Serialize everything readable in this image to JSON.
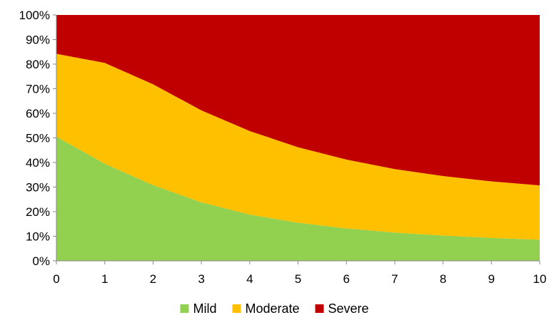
{
  "chart_data": {
    "type": "area",
    "stacked": "percent",
    "x": [
      0,
      1,
      2,
      3,
      4,
      5,
      6,
      7,
      8,
      9,
      10
    ],
    "xlim": [
      0,
      10
    ],
    "ylim": [
      0,
      100
    ],
    "y_ticks": [
      "0%",
      "10%",
      "20%",
      "30%",
      "40%",
      "50%",
      "60%",
      "70%",
      "80%",
      "90%",
      "100%"
    ],
    "x_ticks": [
      "0",
      "1",
      "2",
      "3",
      "4",
      "5",
      "6",
      "7",
      "8",
      "9",
      "10"
    ],
    "series": [
      {
        "name": "Mild",
        "color": "#92d050",
        "values": [
          50.5,
          39.5,
          30.8,
          23.8,
          18.8,
          15.5,
          13.2,
          11.5,
          10.3,
          9.3,
          8.6
        ]
      },
      {
        "name": "Moderate",
        "color": "#ffc000",
        "values": [
          33.7,
          41.0,
          41.0,
          37.4,
          34.0,
          30.7,
          28.0,
          25.8,
          24.2,
          23.0,
          22.1
        ]
      },
      {
        "name": "Severe",
        "color": "#c00000",
        "values": [
          15.8,
          19.5,
          28.2,
          38.8,
          47.2,
          53.8,
          58.8,
          62.7,
          65.5,
          67.7,
          69.3
        ]
      }
    ],
    "legend": {
      "position": "bottom"
    },
    "grid": false
  }
}
